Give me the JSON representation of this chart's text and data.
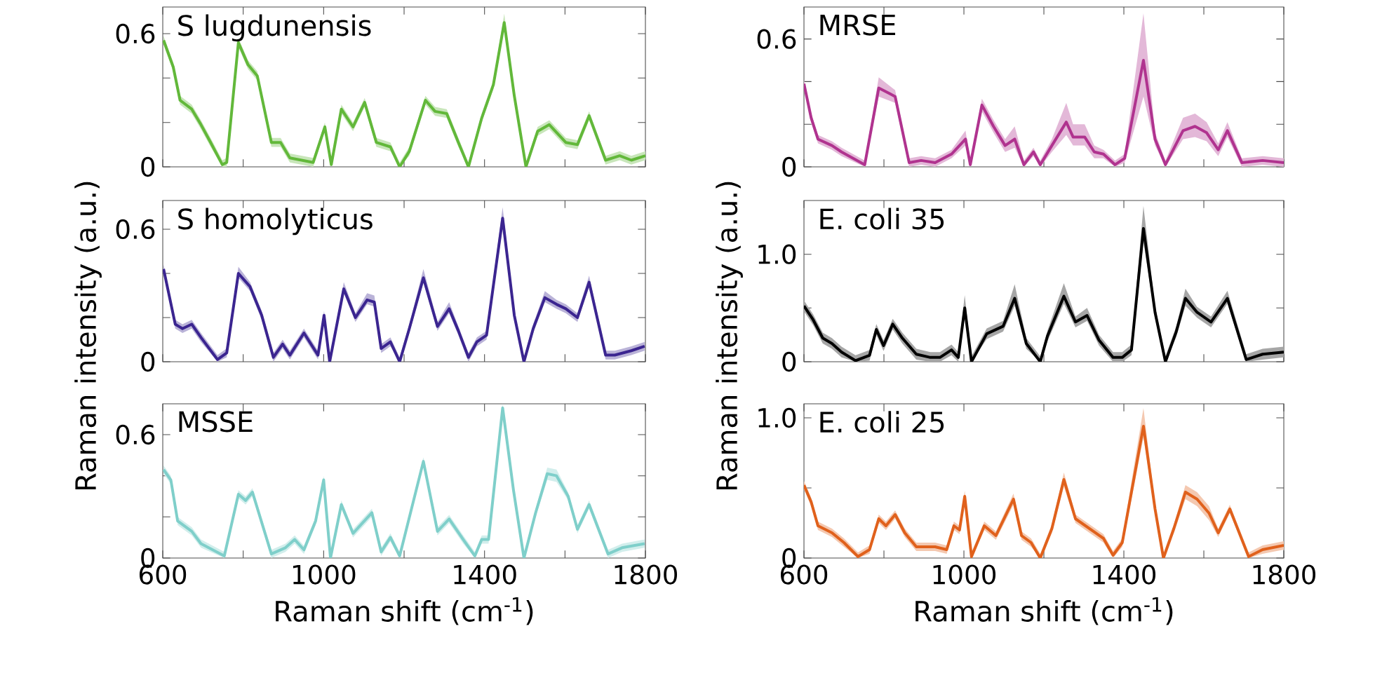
{
  "chart_data": [
    {
      "type": "line",
      "title": "S lugdunensis",
      "xlim": [
        600,
        1800
      ],
      "ylim": [
        0,
        0.72
      ],
      "tick_labels": "y",
      "xticks": [
        600,
        {
          "value": 800,
          "label": null
        },
        1000,
        {
          "value": 1200,
          "label": null
        },
        1400,
        {
          "value": 1600,
          "label": null
        },
        1800
      ],
      "yticks": [
        0,
        {
          "value": 0.2,
          "label": null
        },
        {
          "value": 0.4,
          "label": null
        },
        0.6
      ],
      "x": [
        602,
        626,
        643,
        672,
        695,
        719,
        748,
        759,
        788,
        812,
        835,
        870,
        893,
        916,
        974,
        1003,
        1019,
        1044,
        1073,
        1102,
        1131,
        1166,
        1189,
        1213,
        1253,
        1277,
        1306,
        1335,
        1360,
        1393,
        1422,
        1449,
        1474,
        1503,
        1532,
        1561,
        1602,
        1631,
        1660,
        1701,
        1736,
        1765,
        1800
      ],
      "series": [
        {
          "color": "#62b83a",
          "values": [
            0.57,
            0.45,
            0.3,
            0.26,
            0.19,
            0.11,
            0.01,
            0.02,
            0.56,
            0.46,
            0.41,
            0.11,
            0.11,
            0.04,
            0.02,
            0.18,
            0.01,
            0.26,
            0.18,
            0.29,
            0.11,
            0.09,
            0,
            0.07,
            0.3,
            0.25,
            0.24,
            0.11,
            0,
            0.22,
            0.37,
            0.65,
            0.32,
            0,
            0.16,
            0.19,
            0.11,
            0.1,
            0.23,
            0.03,
            0.05,
            0.03,
            0.05
          ],
          "lower": [
            0.55,
            0.43,
            0.28,
            0.24,
            0.17,
            0.09,
            0,
            0,
            0.54,
            0.44,
            0.39,
            0.09,
            0.09,
            0.02,
            0,
            0.16,
            0,
            0.24,
            0.16,
            0.27,
            0.09,
            0.07,
            0,
            0.05,
            0.28,
            0.23,
            0.22,
            0.09,
            0,
            0.2,
            0.35,
            0.63,
            0.3,
            0,
            0.14,
            0.17,
            0.09,
            0.08,
            0.21,
            0.01,
            0.03,
            0.01,
            0.03
          ],
          "upper": [
            0.59,
            0.47,
            0.32,
            0.28,
            0.21,
            0.13,
            0.03,
            0.04,
            0.58,
            0.48,
            0.43,
            0.13,
            0.13,
            0.06,
            0.04,
            0.2,
            0.03,
            0.28,
            0.2,
            0.31,
            0.13,
            0.11,
            0.02,
            0.09,
            0.32,
            0.27,
            0.26,
            0.13,
            0.02,
            0.24,
            0.39,
            0.69,
            0.34,
            0.02,
            0.18,
            0.21,
            0.13,
            0.12,
            0.25,
            0.05,
            0.07,
            0.05,
            0.07
          ]
        }
      ]
    },
    {
      "type": "line",
      "title": "MRSE",
      "xlim": [
        600,
        1800
      ],
      "ylim": [
        0,
        0.75
      ],
      "tick_labels": "y",
      "xticks": [
        600,
        {
          "value": 800,
          "label": null
        },
        1000,
        {
          "value": 1200,
          "label": null
        },
        1400,
        {
          "value": 1600,
          "label": null
        },
        1800
      ],
      "yticks": [
        0,
        {
          "value": 0.2,
          "label": null
        },
        {
          "value": 0.4,
          "label": null
        },
        0.6
      ],
      "x": [
        600,
        618,
        635,
        670,
        694,
        752,
        787,
        828,
        863,
        893,
        928,
        969,
        1004,
        1016,
        1045,
        1074,
        1103,
        1127,
        1150,
        1174,
        1191,
        1220,
        1256,
        1273,
        1302,
        1326,
        1349,
        1378,
        1402,
        1449,
        1478,
        1504,
        1548,
        1578,
        1607,
        1636,
        1659,
        1695,
        1747,
        1800
      ],
      "series": [
        {
          "color": "#b0338f",
          "values": [
            0.39,
            0.23,
            0.13,
            0.1,
            0.07,
            0.01,
            0.37,
            0.33,
            0.02,
            0.03,
            0.02,
            0.06,
            0.13,
            0.01,
            0.29,
            0.19,
            0.1,
            0.13,
            0.01,
            0.07,
            0.01,
            0.1,
            0.21,
            0.14,
            0.14,
            0.07,
            0.06,
            0.01,
            0.04,
            0.5,
            0.13,
            0.01,
            0.17,
            0.19,
            0.16,
            0.08,
            0.17,
            0.02,
            0.03,
            0.02
          ],
          "lower": [
            0.37,
            0.21,
            0.11,
            0.08,
            0.05,
            0,
            0.33,
            0.3,
            0,
            0.01,
            0,
            0.04,
            0.1,
            0,
            0.26,
            0.16,
            0.07,
            0.09,
            0,
            0.05,
            0,
            0.07,
            0.15,
            0.1,
            0.1,
            0.04,
            0.04,
            0,
            0.02,
            0.33,
            0.1,
            0,
            0.13,
            0.14,
            0.12,
            0.05,
            0.14,
            0,
            0.01,
            0
          ],
          "upper": [
            0.41,
            0.25,
            0.15,
            0.12,
            0.09,
            0.03,
            0.42,
            0.36,
            0.04,
            0.05,
            0.04,
            0.08,
            0.17,
            0.03,
            0.32,
            0.22,
            0.13,
            0.19,
            0.03,
            0.09,
            0.03,
            0.13,
            0.3,
            0.2,
            0.2,
            0.1,
            0.08,
            0.03,
            0.06,
            0.72,
            0.16,
            0.03,
            0.23,
            0.25,
            0.21,
            0.11,
            0.21,
            0.04,
            0.05,
            0.04
          ]
        }
      ]
    },
    {
      "type": "line",
      "title": "S homolyticus",
      "ylabel": "Raman intensity (a.u.)",
      "xlim": [
        600,
        1800
      ],
      "ylim": [
        0,
        0.73
      ],
      "tick_labels": "y",
      "xticks": [
        600,
        {
          "value": 800,
          "label": null
        },
        1000,
        {
          "value": 1200,
          "label": null
        },
        1400,
        {
          "value": 1600,
          "label": null
        },
        1800
      ],
      "yticks": [
        0,
        {
          "value": 0.2,
          "label": null
        },
        {
          "value": 0.4,
          "label": null
        },
        0.6
      ],
      "x": [
        602,
        631,
        649,
        672,
        695,
        736,
        759,
        788,
        817,
        846,
        875,
        898,
        916,
        951,
        986,
        1001,
        1015,
        1050,
        1079,
        1108,
        1126,
        1143,
        1166,
        1189,
        1213,
        1248,
        1283,
        1312,
        1335,
        1360,
        1381,
        1405,
        1445,
        1474,
        1498,
        1521,
        1550,
        1579,
        1602,
        1631,
        1660,
        1701,
        1724,
        1765,
        1798
      ],
      "series": [
        {
          "color": "#3b2590",
          "values": [
            0.42,
            0.17,
            0.15,
            0.17,
            0.11,
            0.01,
            0.04,
            0.4,
            0.34,
            0.21,
            0.02,
            0.08,
            0.03,
            0.13,
            0.03,
            0.21,
            0,
            0.33,
            0.2,
            0.28,
            0.27,
            0.06,
            0.09,
            0,
            0.15,
            0.38,
            0.16,
            0.24,
            0.14,
            0.02,
            0.09,
            0.12,
            0.65,
            0.21,
            0,
            0.15,
            0.29,
            0.26,
            0.24,
            0.2,
            0.36,
            0.03,
            0.03,
            0.05,
            0.07
          ],
          "lower": [
            0.4,
            0.15,
            0.13,
            0.15,
            0.09,
            0,
            0.02,
            0.38,
            0.32,
            0.19,
            0,
            0.06,
            0.01,
            0.11,
            0.01,
            0.19,
            0,
            0.31,
            0.18,
            0.26,
            0.25,
            0.04,
            0.07,
            0,
            0.13,
            0.36,
            0.14,
            0.22,
            0.12,
            0,
            0.07,
            0.1,
            0.61,
            0.19,
            0,
            0.13,
            0.27,
            0.24,
            0.22,
            0.18,
            0.34,
            0.01,
            0.01,
            0.03,
            0.05
          ],
          "upper": [
            0.44,
            0.19,
            0.17,
            0.19,
            0.13,
            0.03,
            0.06,
            0.43,
            0.36,
            0.23,
            0.04,
            0.1,
            0.05,
            0.15,
            0.05,
            0.23,
            0.02,
            0.36,
            0.22,
            0.31,
            0.3,
            0.08,
            0.11,
            0.02,
            0.17,
            0.42,
            0.18,
            0.27,
            0.16,
            0.04,
            0.11,
            0.14,
            0.7,
            0.23,
            0.02,
            0.17,
            0.32,
            0.28,
            0.26,
            0.22,
            0.39,
            0.05,
            0.05,
            0.07,
            0.09
          ]
        }
      ]
    },
    {
      "type": "line",
      "title": "E. coli 35",
      "ylabel": "Raman intensity (a.u.)",
      "xlim": [
        600,
        1800
      ],
      "ylim": [
        0,
        1.5
      ],
      "tick_labels": "y",
      "xticks": [
        600,
        {
          "value": 800,
          "label": null
        },
        1000,
        {
          "value": 1200,
          "label": null
        },
        1400,
        {
          "value": 1600,
          "label": null
        },
        1800
      ],
      "yticks": [
        0,
        {
          "value": 0.5,
          "label": null
        },
        {
          "value": 1,
          "label": "1.0"
        }
      ],
      "x": [
        600,
        623,
        647,
        670,
        694,
        729,
        764,
        781,
        799,
        822,
        846,
        881,
        916,
        940,
        969,
        986,
        1002,
        1019,
        1057,
        1098,
        1127,
        1156,
        1191,
        1209,
        1250,
        1279,
        1308,
        1338,
        1373,
        1396,
        1419,
        1449,
        1478,
        1504,
        1531,
        1554,
        1583,
        1618,
        1659,
        1706,
        1747,
        1800
      ],
      "series": [
        {
          "color": "#000000",
          "values": [
            0.52,
            0.39,
            0.22,
            0.17,
            0.09,
            0.01,
            0.06,
            0.3,
            0.15,
            0.35,
            0.22,
            0.07,
            0.04,
            0.04,
            0.11,
            0.04,
            0.5,
            0,
            0.26,
            0.33,
            0.59,
            0.17,
            0,
            0.24,
            0.61,
            0.37,
            0.43,
            0.2,
            0.04,
            0.04,
            0.11,
            1.24,
            0.46,
            0,
            0.28,
            0.59,
            0.46,
            0.37,
            0.59,
            0.02,
            0.07,
            0.09
          ],
          "lower": [
            0.47,
            0.34,
            0.17,
            0.12,
            0.04,
            0,
            0.01,
            0.25,
            0.1,
            0.3,
            0.17,
            0.02,
            0,
            0,
            0.06,
            0,
            0.45,
            0,
            0.21,
            0.28,
            0.52,
            0.12,
            0,
            0.19,
            0.54,
            0.32,
            0.38,
            0.15,
            0,
            0,
            0.06,
            1.12,
            0.41,
            0,
            0.23,
            0.52,
            0.41,
            0.32,
            0.54,
            0,
            0.02,
            0.04
          ],
          "upper": [
            0.57,
            0.44,
            0.27,
            0.22,
            0.14,
            0.06,
            0.11,
            0.35,
            0.2,
            0.4,
            0.27,
            0.12,
            0.09,
            0.09,
            0.16,
            0.09,
            0.62,
            0.05,
            0.31,
            0.38,
            0.72,
            0.22,
            0.05,
            0.29,
            0.73,
            0.42,
            0.5,
            0.25,
            0.09,
            0.09,
            0.16,
            1.45,
            0.51,
            0.05,
            0.33,
            0.68,
            0.51,
            0.42,
            0.66,
            0.07,
            0.12,
            0.14
          ]
        }
      ]
    },
    {
      "type": "line",
      "title": "MSSE",
      "xlabel": "Raman shift (cm$^{-1}$)",
      "xlim": [
        600,
        1800
      ],
      "ylim": [
        0,
        0.75
      ],
      "xticks": [
        600,
        {
          "value": 800,
          "label": null
        },
        1000,
        {
          "value": 1200,
          "label": null
        },
        1400,
        {
          "value": 1600,
          "label": null
        },
        1800
      ],
      "yticks": [
        0,
        {
          "value": 0.2,
          "label": null
        },
        {
          "value": 0.4,
          "label": null
        },
        0.6
      ],
      "x": [
        602,
        620,
        637,
        672,
        695,
        753,
        788,
        806,
        823,
        870,
        905,
        928,
        951,
        980,
        1000,
        1017,
        1044,
        1073,
        1120,
        1143,
        1166,
        1189,
        1248,
        1283,
        1312,
        1347,
        1376,
        1393,
        1410,
        1445,
        1472,
        1498,
        1527,
        1556,
        1579,
        1608,
        1631,
        1660,
        1707,
        1742,
        1798
      ],
      "series": [
        {
          "color": "#7fcfca",
          "values": [
            0.43,
            0.38,
            0.18,
            0.13,
            0.07,
            0.01,
            0.31,
            0.28,
            0.32,
            0.02,
            0.05,
            0.09,
            0.04,
            0.18,
            0.38,
            0,
            0.26,
            0.12,
            0.22,
            0.03,
            0.1,
            0.01,
            0.47,
            0.13,
            0.19,
            0.09,
            0.01,
            0.09,
            0.09,
            0.73,
            0.33,
            0,
            0.22,
            0.41,
            0.4,
            0.3,
            0.14,
            0.26,
            0.02,
            0.05,
            0.07
          ],
          "lower": [
            0.41,
            0.36,
            0.16,
            0.11,
            0.05,
            0,
            0.29,
            0.26,
            0.3,
            0,
            0.03,
            0.07,
            0.02,
            0.16,
            0.36,
            0,
            0.24,
            0.1,
            0.2,
            0.01,
            0.08,
            0,
            0.45,
            0.11,
            0.17,
            0.07,
            0,
            0.07,
            0.07,
            0.71,
            0.31,
            0,
            0.2,
            0.38,
            0.37,
            0.28,
            0.12,
            0.24,
            0,
            0.03,
            0.05
          ],
          "upper": [
            0.45,
            0.4,
            0.2,
            0.15,
            0.09,
            0.03,
            0.33,
            0.3,
            0.34,
            0.04,
            0.07,
            0.11,
            0.06,
            0.2,
            0.4,
            0.02,
            0.28,
            0.14,
            0.24,
            0.05,
            0.12,
            0.03,
            0.49,
            0.15,
            0.21,
            0.11,
            0.03,
            0.11,
            0.11,
            0.75,
            0.35,
            0.02,
            0.24,
            0.44,
            0.43,
            0.32,
            0.16,
            0.28,
            0.04,
            0.07,
            0.09
          ]
        }
      ]
    },
    {
      "type": "line",
      "title": "E. coli 25",
      "xlabel": "Raman shift (cm$^{-1}$)",
      "xlim": [
        600,
        1800
      ],
      "ylim": [
        0,
        1.1
      ],
      "xticks": [
        600,
        {
          "value": 800,
          "label": null
        },
        1000,
        {
          "value": 1200,
          "label": null
        },
        1400,
        {
          "value": 1600,
          "label": null
        },
        1800
      ],
      "yticks": [
        0,
        {
          "value": 0.5,
          "label": null
        },
        {
          "value": 1,
          "label": "1.0"
        }
      ],
      "x": [
        600,
        618,
        635,
        670,
        700,
        735,
        764,
        787,
        805,
        828,
        852,
        881,
        928,
        957,
        975,
        989,
        1002,
        1019,
        1051,
        1080,
        1124,
        1144,
        1168,
        1191,
        1220,
        1250,
        1279,
        1314,
        1349,
        1373,
        1396,
        1449,
        1478,
        1499,
        1525,
        1554,
        1583,
        1613,
        1636,
        1665,
        1712,
        1747,
        1800
      ],
      "series": [
        {
          "color": "#e0611c",
          "values": [
            0.52,
            0.4,
            0.23,
            0.18,
            0.11,
            0.01,
            0.06,
            0.28,
            0.23,
            0.31,
            0.18,
            0.08,
            0.08,
            0.06,
            0.23,
            0.2,
            0.44,
            0.01,
            0.23,
            0.16,
            0.42,
            0.16,
            0.11,
            0,
            0.21,
            0.56,
            0.28,
            0.21,
            0.14,
            0.02,
            0.11,
            0.94,
            0.35,
            0,
            0.21,
            0.47,
            0.42,
            0.32,
            0.18,
            0.35,
            0.01,
            0.06,
            0.09
          ],
          "lower": [
            0.49,
            0.37,
            0.2,
            0.15,
            0.08,
            0,
            0.03,
            0.25,
            0.2,
            0.28,
            0.15,
            0.05,
            0.05,
            0.03,
            0.2,
            0.17,
            0.4,
            0,
            0.2,
            0.13,
            0.38,
            0.13,
            0.08,
            0,
            0.18,
            0.51,
            0.25,
            0.18,
            0.11,
            0,
            0.08,
            0.86,
            0.32,
            0,
            0.18,
            0.42,
            0.37,
            0.27,
            0.15,
            0.32,
            0,
            0.03,
            0.06
          ],
          "upper": [
            0.55,
            0.43,
            0.26,
            0.21,
            0.14,
            0.04,
            0.09,
            0.31,
            0.26,
            0.34,
            0.21,
            0.11,
            0.11,
            0.09,
            0.26,
            0.23,
            0.48,
            0.04,
            0.26,
            0.19,
            0.46,
            0.19,
            0.14,
            0.03,
            0.24,
            0.61,
            0.31,
            0.24,
            0.17,
            0.05,
            0.14,
            1.07,
            0.38,
            0.03,
            0.24,
            0.52,
            0.47,
            0.37,
            0.21,
            0.38,
            0.04,
            0.09,
            0.12
          ]
        }
      ]
    }
  ]
}
